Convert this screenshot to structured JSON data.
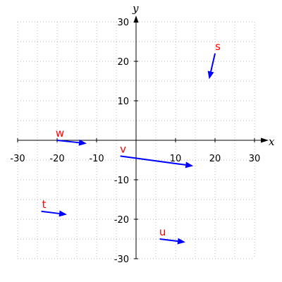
{
  "chart_data": {
    "type": "vector-field",
    "xlabel": "x",
    "ylabel": "y",
    "xlim": [
      -30,
      30
    ],
    "ylim": [
      -30,
      30
    ],
    "xticks": [
      -30,
      -20,
      -10,
      10,
      20,
      30
    ],
    "yticks": [
      -30,
      -20,
      -10,
      10,
      20,
      30
    ],
    "tick_labels": {
      "x": [
        "-30",
        "-20",
        "-10",
        "10",
        "20",
        "30"
      ],
      "y": [
        "-30",
        "-20",
        "-10",
        "10",
        "20",
        "30"
      ]
    },
    "grid": true,
    "vectors": [
      {
        "label": "s",
        "x": 20,
        "y": 22,
        "dx": -1.5,
        "dy": -6.5
      },
      {
        "label": "w",
        "x": -20,
        "y": 0,
        "dx": 7.5,
        "dy": -0.8
      },
      {
        "label": "v",
        "x": -4,
        "y": -4,
        "dx": 18.5,
        "dy": -2.5
      },
      {
        "label": "t",
        "x": -24,
        "y": -18,
        "dx": 6.5,
        "dy": -0.8
      },
      {
        "label": "u",
        "x": 6,
        "y": -25,
        "dx": 6.5,
        "dy": -0.8
      }
    ],
    "colors": {
      "vector": "#0000ff",
      "label": "#ff0000",
      "grid": "#b4b4b4",
      "axis": "#000000"
    }
  }
}
